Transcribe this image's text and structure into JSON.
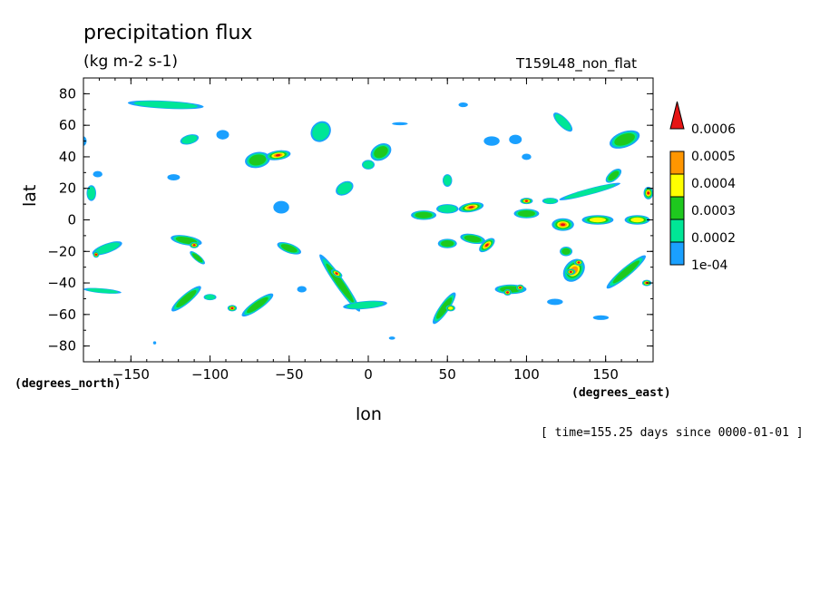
{
  "chart_data": {
    "type": "heatmap",
    "title": "precipitation flux",
    "subtitle": "(kg m-2 s-1)",
    "run_label": "T159L48_non_flat",
    "xlabel": "lon",
    "ylabel": "lat",
    "x_units": "(degrees_east)",
    "y_units": "(degrees_north)",
    "time_label": "[ time=155.25 days since 0000-01-01 ]",
    "xlim": [
      -180,
      180
    ],
    "ylim": [
      -90,
      90
    ],
    "x_ticks": [
      -150,
      -100,
      -50,
      0,
      50,
      100,
      150
    ],
    "x_tick_labels": [
      "−150",
      "−100",
      "−50",
      "0",
      "50",
      "100",
      "150"
    ],
    "y_ticks": [
      80,
      60,
      40,
      20,
      0,
      -20,
      -40,
      -60,
      -80
    ],
    "y_tick_labels": [
      "80",
      "60",
      "40",
      "20",
      "0",
      "−20",
      "−40",
      "−60",
      "−80"
    ],
    "colorbar": {
      "levels": [
        "0.0006",
        "0.0005",
        "0.0004",
        "0.0003",
        "0.0002",
        "1e-04"
      ],
      "colors": [
        "#1aa0ff",
        "#00e696",
        "#1ec81e",
        "#ffff00",
        "#ff9600",
        "#e61414"
      ]
    },
    "features": [
      {
        "lon": -128,
        "lat": 73,
        "dlon": 24,
        "dlat": 2.5,
        "rot": 3,
        "level": 1
      },
      {
        "lon": -113,
        "lat": 51,
        "dlon": 6,
        "dlat": 3,
        "rot": -15,
        "level": 1
      },
      {
        "lon": -92,
        "lat": 54,
        "dlon": 4,
        "dlat": 3,
        "rot": 0,
        "level": 0
      },
      {
        "lon": -70,
        "lat": 38,
        "dlon": 8,
        "dlat": 5,
        "rot": -10,
        "level": 2
      },
      {
        "lon": -57,
        "lat": 41,
        "dlon": 8,
        "dlat": 3,
        "rot": -8,
        "level": 5
      },
      {
        "lon": -30,
        "lat": 56,
        "dlon": 6,
        "dlat": 7,
        "rot": 40,
        "level": 1
      },
      {
        "lon": 8,
        "lat": 43,
        "dlon": 7,
        "dlat": 5,
        "rot": -30,
        "level": 2
      },
      {
        "lon": 0,
        "lat": 35,
        "dlon": 4,
        "dlat": 3,
        "rot": 0,
        "level": 1
      },
      {
        "lon": -15,
        "lat": 20,
        "dlon": 6,
        "dlat": 4,
        "rot": -30,
        "level": 1
      },
      {
        "lon": 20,
        "lat": 61,
        "dlon": 5,
        "dlat": 1,
        "rot": 0,
        "level": 0
      },
      {
        "lon": 60,
        "lat": 73,
        "dlon": 3,
        "dlat": 1.5,
        "rot": 0,
        "level": 0
      },
      {
        "lon": 78,
        "lat": 50,
        "dlon": 5,
        "dlat": 3,
        "rot": 0,
        "level": 0
      },
      {
        "lon": 93,
        "lat": 51,
        "dlon": 4,
        "dlat": 3,
        "rot": 0,
        "level": 0
      },
      {
        "lon": 100,
        "lat": 40,
        "dlon": 3,
        "dlat": 2,
        "rot": 0,
        "level": 0
      },
      {
        "lon": 123,
        "lat": 62,
        "dlon": 8,
        "dlat": 3,
        "rot": 45,
        "level": 1
      },
      {
        "lon": 162,
        "lat": 51,
        "dlon": 10,
        "dlat": 5,
        "rot": -20,
        "level": 2
      },
      {
        "lon": 155,
        "lat": 28,
        "dlon": 6,
        "dlat": 3,
        "rot": -40,
        "level": 2
      },
      {
        "lon": 177,
        "lat": 17,
        "dlon": 3,
        "dlat": 4,
        "rot": 0,
        "level": 5
      },
      {
        "lon": -171,
        "lat": 29,
        "dlon": 3,
        "dlat": 2,
        "rot": 0,
        "level": 0
      },
      {
        "lon": -175,
        "lat": 17,
        "dlon": 3,
        "dlat": 5,
        "rot": 0,
        "level": 1
      },
      {
        "lon": -123,
        "lat": 27,
        "dlon": 4,
        "dlat": 2,
        "rot": 0,
        "level": 0
      },
      {
        "lon": -55,
        "lat": 8,
        "dlon": 5,
        "dlat": 4,
        "rot": 0,
        "level": 0
      },
      {
        "lon": 50,
        "lat": 25,
        "dlon": 3,
        "dlat": 4,
        "rot": 0,
        "level": 1
      },
      {
        "lon": 65,
        "lat": 8,
        "dlon": 8,
        "dlat": 3,
        "rot": -10,
        "level": 5
      },
      {
        "lon": 50,
        "lat": 7,
        "dlon": 7,
        "dlat": 3,
        "rot": 0,
        "level": 1
      },
      {
        "lon": 35,
        "lat": 3,
        "dlon": 8,
        "dlat": 3,
        "rot": 0,
        "level": 2
      },
      {
        "lon": 100,
        "lat": 12,
        "dlon": 4,
        "dlat": 2,
        "rot": 0,
        "level": 5
      },
      {
        "lon": 115,
        "lat": 12,
        "dlon": 5,
        "dlat": 2,
        "rot": 0,
        "level": 1
      },
      {
        "lon": 140,
        "lat": 18,
        "dlon": 20,
        "dlat": 2,
        "rot": -15,
        "level": 1
      },
      {
        "lon": 100,
        "lat": 4,
        "dlon": 8,
        "dlat": 3,
        "rot": 0,
        "level": 2
      },
      {
        "lon": 123,
        "lat": -3,
        "dlon": 7,
        "dlat": 4,
        "rot": 0,
        "level": 5
      },
      {
        "lon": 145,
        "lat": 0,
        "dlon": 10,
        "dlat": 3,
        "rot": 0,
        "level": 3
      },
      {
        "lon": 170,
        "lat": 0,
        "dlon": 8,
        "dlat": 3,
        "rot": 0,
        "level": 3
      },
      {
        "lon": -115,
        "lat": -13,
        "dlon": 10,
        "dlat": 3,
        "rot": 10,
        "level": 2
      },
      {
        "lon": -110,
        "lat": -16,
        "dlon": 3,
        "dlat": 2,
        "rot": 0,
        "level": 5
      },
      {
        "lon": -108,
        "lat": -24,
        "dlon": 6,
        "dlat": 2,
        "rot": 40,
        "level": 2
      },
      {
        "lon": -165,
        "lat": -18,
        "dlon": 10,
        "dlat": 3,
        "rot": -20,
        "level": 1
      },
      {
        "lon": -172,
        "lat": -22,
        "dlon": 2,
        "dlat": 2,
        "rot": 0,
        "level": 5
      },
      {
        "lon": -50,
        "lat": -18,
        "dlon": 8,
        "dlat": 3,
        "rot": 20,
        "level": 2
      },
      {
        "lon": -18,
        "lat": -40,
        "dlon": 22,
        "dlat": 3,
        "rot": 55,
        "level": 2
      },
      {
        "lon": -20,
        "lat": -34,
        "dlon": 4,
        "dlat": 2,
        "rot": 30,
        "level": 5
      },
      {
        "lon": -2,
        "lat": -54,
        "dlon": 14,
        "dlat": 2.5,
        "rot": -5,
        "level": 1
      },
      {
        "lon": -70,
        "lat": -54,
        "dlon": 12,
        "dlat": 3,
        "rot": -35,
        "level": 2
      },
      {
        "lon": -86,
        "lat": -56,
        "dlon": 3,
        "dlat": 2,
        "rot": 0,
        "level": 5
      },
      {
        "lon": -115,
        "lat": -50,
        "dlon": 12,
        "dlat": 3,
        "rot": -40,
        "level": 2
      },
      {
        "lon": -100,
        "lat": -49,
        "dlon": 4,
        "dlat": 2,
        "rot": 0,
        "level": 1
      },
      {
        "lon": -168,
        "lat": -45,
        "dlon": 12,
        "dlat": 1.5,
        "rot": 5,
        "level": 1
      },
      {
        "lon": -42,
        "lat": -44,
        "dlon": 3,
        "dlat": 2,
        "rot": 0,
        "level": 0
      },
      {
        "lon": 48,
        "lat": -56,
        "dlon": 12,
        "dlat": 3,
        "rot": -55,
        "level": 2
      },
      {
        "lon": 52,
        "lat": -56,
        "dlon": 3,
        "dlat": 2,
        "rot": 0,
        "level": 3
      },
      {
        "lon": 75,
        "lat": -16,
        "dlon": 6,
        "dlat": 3,
        "rot": -40,
        "level": 5
      },
      {
        "lon": 50,
        "lat": -15,
        "dlon": 6,
        "dlat": 3,
        "rot": 0,
        "level": 2
      },
      {
        "lon": 66,
        "lat": -12,
        "dlon": 8,
        "dlat": 3,
        "rot": 10,
        "level": 2
      },
      {
        "lon": 90,
        "lat": -44,
        "dlon": 10,
        "dlat": 3,
        "rot": 0,
        "level": 2
      },
      {
        "lon": 88,
        "lat": -46,
        "dlon": 2.5,
        "dlat": 2,
        "rot": 0,
        "level": 5
      },
      {
        "lon": 96,
        "lat": -43,
        "dlon": 2.5,
        "dlat": 2,
        "rot": 0,
        "level": 5
      },
      {
        "lon": 130,
        "lat": -32,
        "dlon": 8,
        "dlat": 6,
        "rot": -50,
        "level": 4
      },
      {
        "lon": 128,
        "lat": -33,
        "dlon": 3,
        "dlat": 2,
        "rot": 0,
        "level": 5
      },
      {
        "lon": 133,
        "lat": -27,
        "dlon": 3,
        "dlat": 2,
        "rot": 0,
        "level": 5
      },
      {
        "lon": 125,
        "lat": -20,
        "dlon": 4,
        "dlat": 3,
        "rot": 0,
        "level": 2
      },
      {
        "lon": 163,
        "lat": -33,
        "dlon": 16,
        "dlat": 3,
        "rot": -40,
        "level": 2
      },
      {
        "lon": 176,
        "lat": -40,
        "dlon": 3,
        "dlat": 2,
        "rot": 0,
        "level": 5
      },
      {
        "lon": 118,
        "lat": -52,
        "dlon": 5,
        "dlat": 2,
        "rot": 0,
        "level": 0
      },
      {
        "lon": 147,
        "lat": -62,
        "dlon": 5,
        "dlat": 1.5,
        "rot": 0,
        "level": 0
      },
      {
        "lon": 15,
        "lat": -75,
        "dlon": 2,
        "dlat": 1,
        "rot": 0,
        "level": 0
      },
      {
        "lon": -135,
        "lat": -78,
        "dlon": 1,
        "dlat": 1,
        "rot": 0,
        "level": 0
      },
      {
        "lon": -180,
        "lat": 50,
        "dlon": 2,
        "dlat": 3,
        "rot": 0,
        "level": 0
      }
    ]
  }
}
